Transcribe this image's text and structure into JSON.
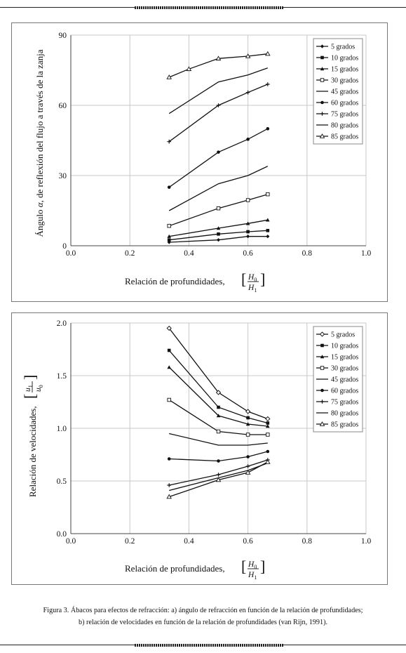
{
  "charts": [
    {
      "id": "a",
      "type": "line",
      "ylabel_parts": [
        "Ángulo ",
        "α",
        ", de reflexión del flujo a través de la zanja"
      ],
      "xlabel": "Relación de profundidades,",
      "xlabel_frac": {
        "num": "H",
        "num_sub": "0",
        "den": "H",
        "den_sub": "1"
      },
      "xlim": [
        0.0,
        1.0
      ],
      "ylim": [
        0,
        90
      ],
      "x_ticks": [
        "0.0",
        "0.2",
        "0.4",
        "0.6",
        "0.8",
        "1.0"
      ],
      "y_ticks": [
        "0",
        "30",
        "60",
        "90"
      ],
      "grid": true,
      "legend_position": "top-right",
      "series": [
        {
          "name": "5 grados",
          "marker": "diamond-filled",
          "x": [
            0.333,
            0.5,
            0.6,
            0.667
          ],
          "values": [
            1.5,
            2.5,
            4.0,
            4.0
          ]
        },
        {
          "name": "10 grados",
          "marker": "square-filled",
          "x": [
            0.333,
            0.5,
            0.6,
            0.667
          ],
          "values": [
            2.5,
            5.0,
            6.0,
            6.5
          ]
        },
        {
          "name": "15 grados",
          "marker": "triangle-filled",
          "x": [
            0.333,
            0.5,
            0.6,
            0.667
          ],
          "values": [
            4.0,
            7.5,
            9.5,
            11.0
          ]
        },
        {
          "name": "30 grados",
          "marker": "square-open",
          "x": [
            0.333,
            0.5,
            0.6,
            0.667
          ],
          "values": [
            8.5,
            16.0,
            19.5,
            22.0
          ]
        },
        {
          "name": "45 grados",
          "marker": "none",
          "x": [
            0.333,
            0.5,
            0.6,
            0.667
          ],
          "values": [
            15.0,
            26.5,
            30.0,
            34.0
          ]
        },
        {
          "name": "60 grados",
          "marker": "circle-filled",
          "x": [
            0.333,
            0.5,
            0.6,
            0.667
          ],
          "values": [
            25.0,
            40.0,
            45.5,
            50.0
          ]
        },
        {
          "name": "75 grados",
          "marker": "plus",
          "x": [
            0.333,
            0.5,
            0.6,
            0.667
          ],
          "values": [
            44.5,
            60.0,
            65.5,
            69.0
          ]
        },
        {
          "name": "80 grados",
          "marker": "none",
          "x": [
            0.333,
            0.5,
            0.6,
            0.667
          ],
          "values": [
            56.5,
            70.0,
            73.0,
            76.0
          ]
        },
        {
          "name": "85 grados",
          "marker": "triangle-open",
          "x": [
            0.333,
            0.4,
            0.5,
            0.6,
            0.667
          ],
          "values": [
            72.0,
            75.5,
            80.0,
            81.0,
            82.0
          ]
        }
      ]
    },
    {
      "id": "b",
      "type": "line",
      "ylabel": "Relación de velocidades,",
      "ylabel_frac": {
        "num": "u",
        "num_sub": "1",
        "den": "u",
        "den_sub": "0"
      },
      "xlabel": "Relación de profundidades,",
      "xlabel_frac": {
        "num": "H",
        "num_sub": "0",
        "den": "H",
        "den_sub": "1"
      },
      "xlim": [
        0.0,
        1.0
      ],
      "ylim": [
        0.0,
        2.0
      ],
      "x_ticks": [
        "0.0",
        "0.2",
        "0.4",
        "0.6",
        "0.8",
        "1.0"
      ],
      "y_ticks": [
        "0.0",
        "0.5",
        "1.0",
        "1.5",
        "2.0"
      ],
      "grid": true,
      "legend_position": "top-right",
      "series": [
        {
          "name": "5 grados",
          "marker": "diamond-open",
          "x": [
            0.333,
            0.5,
            0.6,
            0.667
          ],
          "values": [
            1.95,
            1.34,
            1.16,
            1.09
          ]
        },
        {
          "name": "10 grados",
          "marker": "square-filled",
          "x": [
            0.333,
            0.5,
            0.6,
            0.667
          ],
          "values": [
            1.74,
            1.2,
            1.1,
            1.05
          ]
        },
        {
          "name": "15 grados",
          "marker": "triangle-filled",
          "x": [
            0.333,
            0.5,
            0.6,
            0.667
          ],
          "values": [
            1.58,
            1.12,
            1.04,
            1.02
          ]
        },
        {
          "name": "30 grados",
          "marker": "square-open",
          "x": [
            0.333,
            0.5,
            0.6,
            0.667
          ],
          "values": [
            1.27,
            0.97,
            0.94,
            0.94
          ]
        },
        {
          "name": "45 grados",
          "marker": "none",
          "x": [
            0.333,
            0.5,
            0.6,
            0.667
          ],
          "values": [
            0.95,
            0.84,
            0.84,
            0.86
          ]
        },
        {
          "name": "60 grados",
          "marker": "circle-filled",
          "x": [
            0.333,
            0.5,
            0.6,
            0.667
          ],
          "values": [
            0.71,
            0.69,
            0.73,
            0.78
          ]
        },
        {
          "name": "75 grados",
          "marker": "plus",
          "x": [
            0.333,
            0.5,
            0.6,
            0.667
          ],
          "values": [
            0.46,
            0.56,
            0.64,
            0.7
          ]
        },
        {
          "name": "80 grados",
          "marker": "none",
          "x": [
            0.333,
            0.5,
            0.6,
            0.667
          ],
          "values": [
            0.41,
            0.53,
            0.6,
            0.67
          ]
        },
        {
          "name": "85 grados",
          "marker": "triangle-open",
          "x": [
            0.333,
            0.5,
            0.6,
            0.667
          ],
          "values": [
            0.35,
            0.51,
            0.58,
            0.68
          ]
        }
      ]
    }
  ],
  "caption": {
    "line1": "Figura 3. Ábacos para efectos de refracción: a) ángulo de refracción en función de la relación de profundidades;",
    "line2": "b) relación de velocidades en función de la relación de profundidades (van Rijn, 1991)."
  }
}
